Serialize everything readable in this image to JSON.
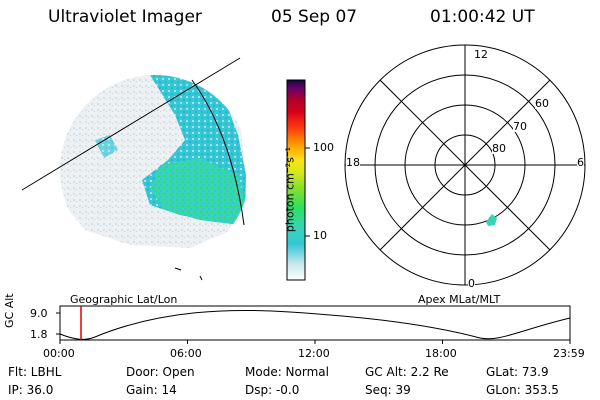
{
  "header": {
    "instrument": "Ultraviolet Imager",
    "date": "05 Sep 07",
    "time": "01:00:42 UT"
  },
  "colorbar": {
    "unit_label": "photon cm⁻²s⁻¹",
    "ticks": [
      "100",
      "10"
    ],
    "colors": [
      "#ffffff",
      "#c8e8ec",
      "#36c6d6",
      "#38d4b8",
      "#2ee060",
      "#86e02a",
      "#d8e81a",
      "#fbe214",
      "#ff9a00",
      "#ff3a10",
      "#d8001c",
      "#b0002a",
      "#6a006a",
      "#0b0b3c"
    ]
  },
  "polar_plot": {
    "mlt_labels": {
      "top": "12",
      "bottom": "0",
      "left": "18",
      "right": "6"
    },
    "lat_labels": [
      "60",
      "70",
      "80"
    ]
  },
  "timeline": {
    "ylabel": "GC Alt",
    "y_ticks": [
      "9.0",
      "1.8"
    ],
    "left_label": "Geographic Lat/Lon",
    "right_label": "Apex MLat/MLT",
    "x_ticks": [
      "00:00",
      "06:00",
      "12:00",
      "18:00",
      "23:59"
    ]
  },
  "info": {
    "flt": "Flt: LBHL",
    "ip": "IP: 36.0",
    "door": "Door: Open",
    "gain": "Gain: 14",
    "mode": "Mode: Normal",
    "dsp": "Dsp:  -0.0",
    "gcalt": "GC Alt: 2.2 Re",
    "seq": "Seq: 39",
    "glat": "GLat: 73.9",
    "glon": "GLon: 353.5"
  }
}
